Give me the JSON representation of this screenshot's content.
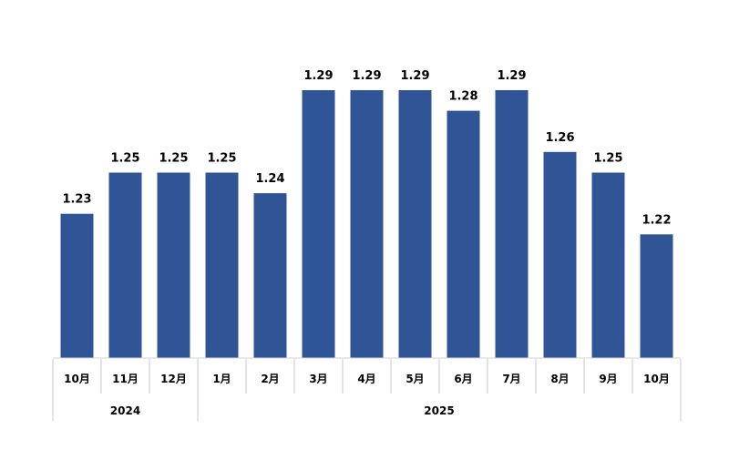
{
  "chart_data": {
    "type": "bar",
    "categories": [
      "10月",
      "11月",
      "12月",
      "1月",
      "2月",
      "3月",
      "4月",
      "5月",
      "6月",
      "7月",
      "8月",
      "9月",
      "10月"
    ],
    "values": [
      1.23,
      1.25,
      1.25,
      1.25,
      1.24,
      1.29,
      1.29,
      1.29,
      1.28,
      1.29,
      1.26,
      1.25,
      1.22
    ],
    "value_labels": [
      "1.23",
      "1.25",
      "1.25",
      "1.25",
      "1.24",
      "1.29",
      "1.29",
      "1.29",
      "1.28",
      "1.29",
      "1.26",
      "1.25",
      "1.22"
    ],
    "groups": [
      {
        "label": "2024",
        "count": 3
      },
      {
        "label": "2025",
        "count": 10
      }
    ],
    "ylim": [
      1.16,
      1.29
    ],
    "title": "",
    "xlabel": "",
    "ylabel": "",
    "grid": false,
    "legend": "none",
    "bar_color": "#2f5597"
  }
}
